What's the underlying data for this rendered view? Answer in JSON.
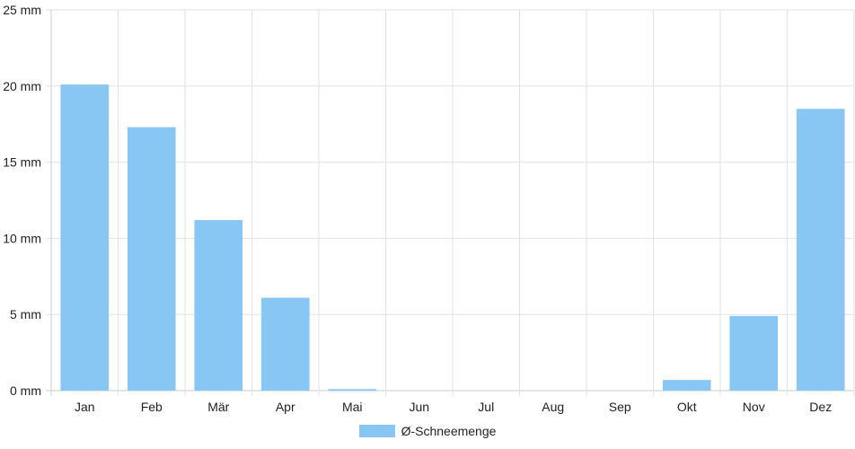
{
  "chart_data": {
    "type": "bar",
    "categories": [
      "Jan",
      "Feb",
      "Mär",
      "Apr",
      "Mai",
      "Jun",
      "Jul",
      "Aug",
      "Sep",
      "Okt",
      "Nov",
      "Dez"
    ],
    "series": [
      {
        "name": "Ø-Schneemenge",
        "values": [
          20.1,
          17.3,
          11.2,
          6.1,
          0.1,
          0,
          0,
          0,
          0,
          0.7,
          4.9,
          18.5
        ],
        "color": "#88c6f3"
      }
    ],
    "y_ticks": [
      "0 mm",
      "5 mm",
      "10 mm",
      "15 mm",
      "20 mm",
      "25 mm"
    ],
    "ylim": [
      0,
      25
    ],
    "y_step": 5,
    "grid": true,
    "legend_position": "bottom-center",
    "grid_color": "#e2e2e2",
    "axis_color": "#cccccc"
  }
}
